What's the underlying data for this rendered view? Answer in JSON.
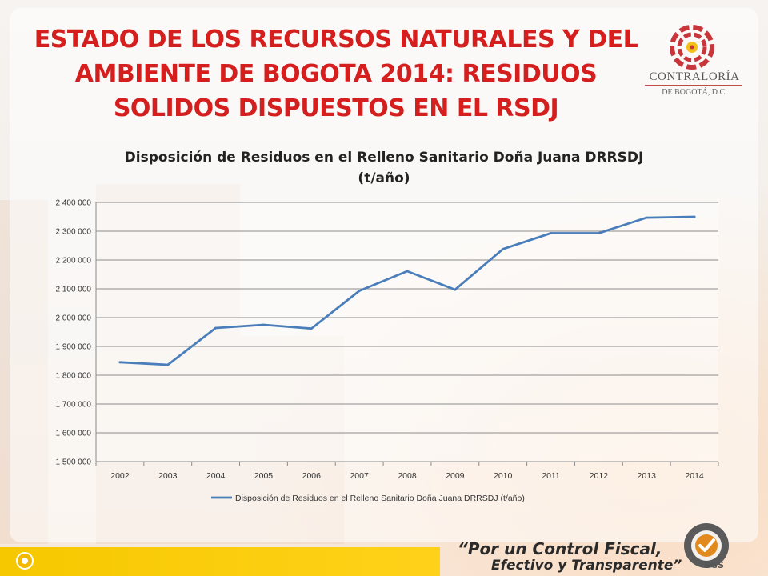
{
  "slide": {
    "title_lines": [
      "ESTADO DE LOS RECURSOS NATURALES Y DEL",
      "AMBIENTE DE BOGOTA 2014: RESIDUOS",
      "SOLIDOS DISPUESTOS EN EL RSDJ"
    ]
  },
  "logo": {
    "name": "CONTRALORÍA",
    "subtitle": "DE BOGOTÁ, D.C."
  },
  "footer": {
    "motto_line1": "“Por un Control Fiscal,",
    "motto_line2": "Efectivo y Transparente”",
    "seal_text": "SGS"
  },
  "colors": {
    "title": "#d51f1f",
    "series": "#4a7ebb",
    "footer_bar": "#f6c800"
  },
  "chart_data": {
    "type": "line",
    "title_lines": [
      "Disposición de Residuos en el Relleno Sanitario Doña Juana DRRSDJ",
      "(t/año)"
    ],
    "xlabel": "",
    "ylabel": "",
    "x": [
      "2002",
      "2003",
      "2004",
      "2005",
      "2006",
      "2007",
      "2008",
      "2009",
      "2010",
      "2011",
      "2012",
      "2013",
      "2014"
    ],
    "series": [
      {
        "name": "Disposición de Residuos en el Relleno Sanitario Doña Juana DRRSDJ (t/año)",
        "values": [
          1845000,
          1836000,
          1964000,
          1975000,
          1962000,
          2093000,
          2161000,
          2097000,
          2238000,
          2293000,
          2293000,
          2347000,
          2350000
        ]
      }
    ],
    "ylim": [
      1500000,
      2400000
    ],
    "yticks": [
      1500000,
      1600000,
      1700000,
      1800000,
      1900000,
      2000000,
      2100000,
      2200000,
      2300000,
      2400000
    ],
    "ytick_labels": [
      "1 500 000",
      "1 600 000",
      "1 700 000",
      "1 800 000",
      "1 900 000",
      "2 000 000",
      "2 100 000",
      "2 200 000",
      "2 300 000",
      "2 400 000"
    ],
    "grid": true,
    "legend_position": "bottom"
  }
}
